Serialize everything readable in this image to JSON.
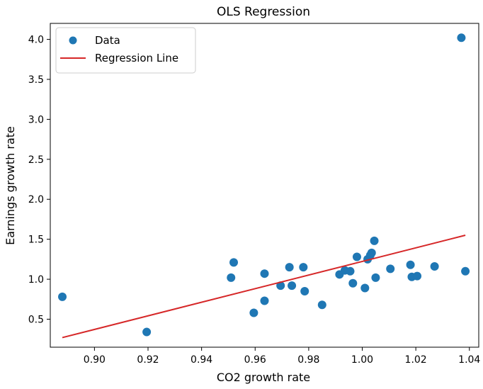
{
  "chart_data": {
    "type": "scatter",
    "title": "OLS Regression",
    "xlabel": "CO2 growth rate",
    "ylabel": "Earnings growth rate",
    "xlim": [
      0.8835,
      1.0435
    ],
    "ylim": [
      0.15,
      4.2
    ],
    "x_ticks": [
      "0.90",
      "0.92",
      "0.94",
      "0.96",
      "0.98",
      "1.00",
      "1.02",
      "1.04"
    ],
    "y_ticks": [
      "0.5",
      "1.0",
      "1.5",
      "2.0",
      "2.5",
      "3.0",
      "3.5",
      "4.0"
    ],
    "grid": false,
    "legend_position": "top-left",
    "series": [
      {
        "name": "Data",
        "kind": "scatter",
        "color": "#1f77b4",
        "points": [
          [
            0.888,
            0.78
          ],
          [
            0.9195,
            0.34
          ],
          [
            0.951,
            1.02
          ],
          [
            0.952,
            1.21
          ],
          [
            0.9595,
            0.58
          ],
          [
            0.9635,
            1.07
          ],
          [
            0.9635,
            0.73
          ],
          [
            0.9695,
            0.92
          ],
          [
            0.9728,
            1.15
          ],
          [
            0.9737,
            0.92
          ],
          [
            0.978,
            1.15
          ],
          [
            0.9785,
            0.85
          ],
          [
            0.985,
            0.68
          ],
          [
            0.9915,
            1.06
          ],
          [
            0.9935,
            1.11
          ],
          [
            0.9955,
            1.1
          ],
          [
            0.9965,
            0.95
          ],
          [
            0.998,
            1.28
          ],
          [
            1.001,
            0.89
          ],
          [
            1.002,
            1.25
          ],
          [
            1.003,
            1.3
          ],
          [
            1.0035,
            1.33
          ],
          [
            1.0045,
            1.48
          ],
          [
            1.005,
            1.02
          ],
          [
            1.0105,
            1.13
          ],
          [
            1.018,
            1.18
          ],
          [
            1.0185,
            1.03
          ],
          [
            1.0205,
            1.04
          ],
          [
            1.027,
            1.16
          ],
          [
            1.037,
            4.02
          ],
          [
            1.0385,
            1.1
          ]
        ]
      },
      {
        "name": "Regression Line",
        "kind": "line",
        "color": "#d62728",
        "points": [
          [
            0.888,
            0.27
          ],
          [
            1.0385,
            1.55
          ]
        ]
      }
    ]
  }
}
